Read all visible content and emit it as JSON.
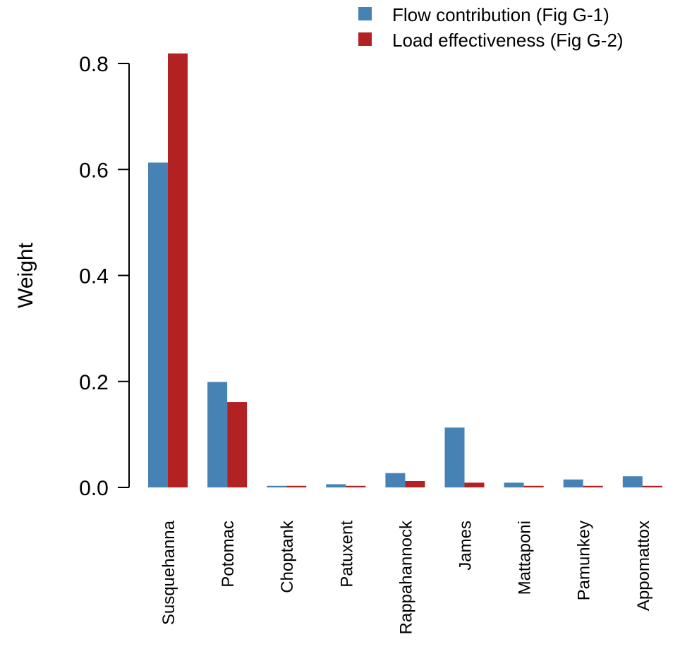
{
  "chart_data": {
    "type": "bar",
    "categories": [
      "Susquehanna",
      "Potomac",
      "Choptank",
      "Patuxent",
      "Rappahannock",
      "James",
      "Mattaponi",
      "Pamunkey",
      "Appomattox"
    ],
    "series": [
      {
        "name": "Flow contribution (Fig G-1)",
        "color": "#4682b4",
        "values": [
          0.613,
          0.199,
          0.003,
          0.006,
          0.027,
          0.113,
          0.009,
          0.015,
          0.021
        ]
      },
      {
        "name": "Load effectiveness (Fig G-2)",
        "color": "#b22222",
        "values": [
          0.819,
          0.161,
          0.003,
          0.003,
          0.012,
          0.009,
          0.003,
          0.003,
          0.003
        ]
      }
    ],
    "ylabel": "Weight",
    "xlabel": "",
    "ylim": [
      0,
      0.8
    ],
    "yticks": [
      0.0,
      0.2,
      0.4,
      0.6,
      0.8
    ],
    "ytick_labels": [
      "0.0",
      "0.2",
      "0.4",
      "0.6",
      "0.8"
    ],
    "grid": false,
    "legend_position": "top-right"
  }
}
